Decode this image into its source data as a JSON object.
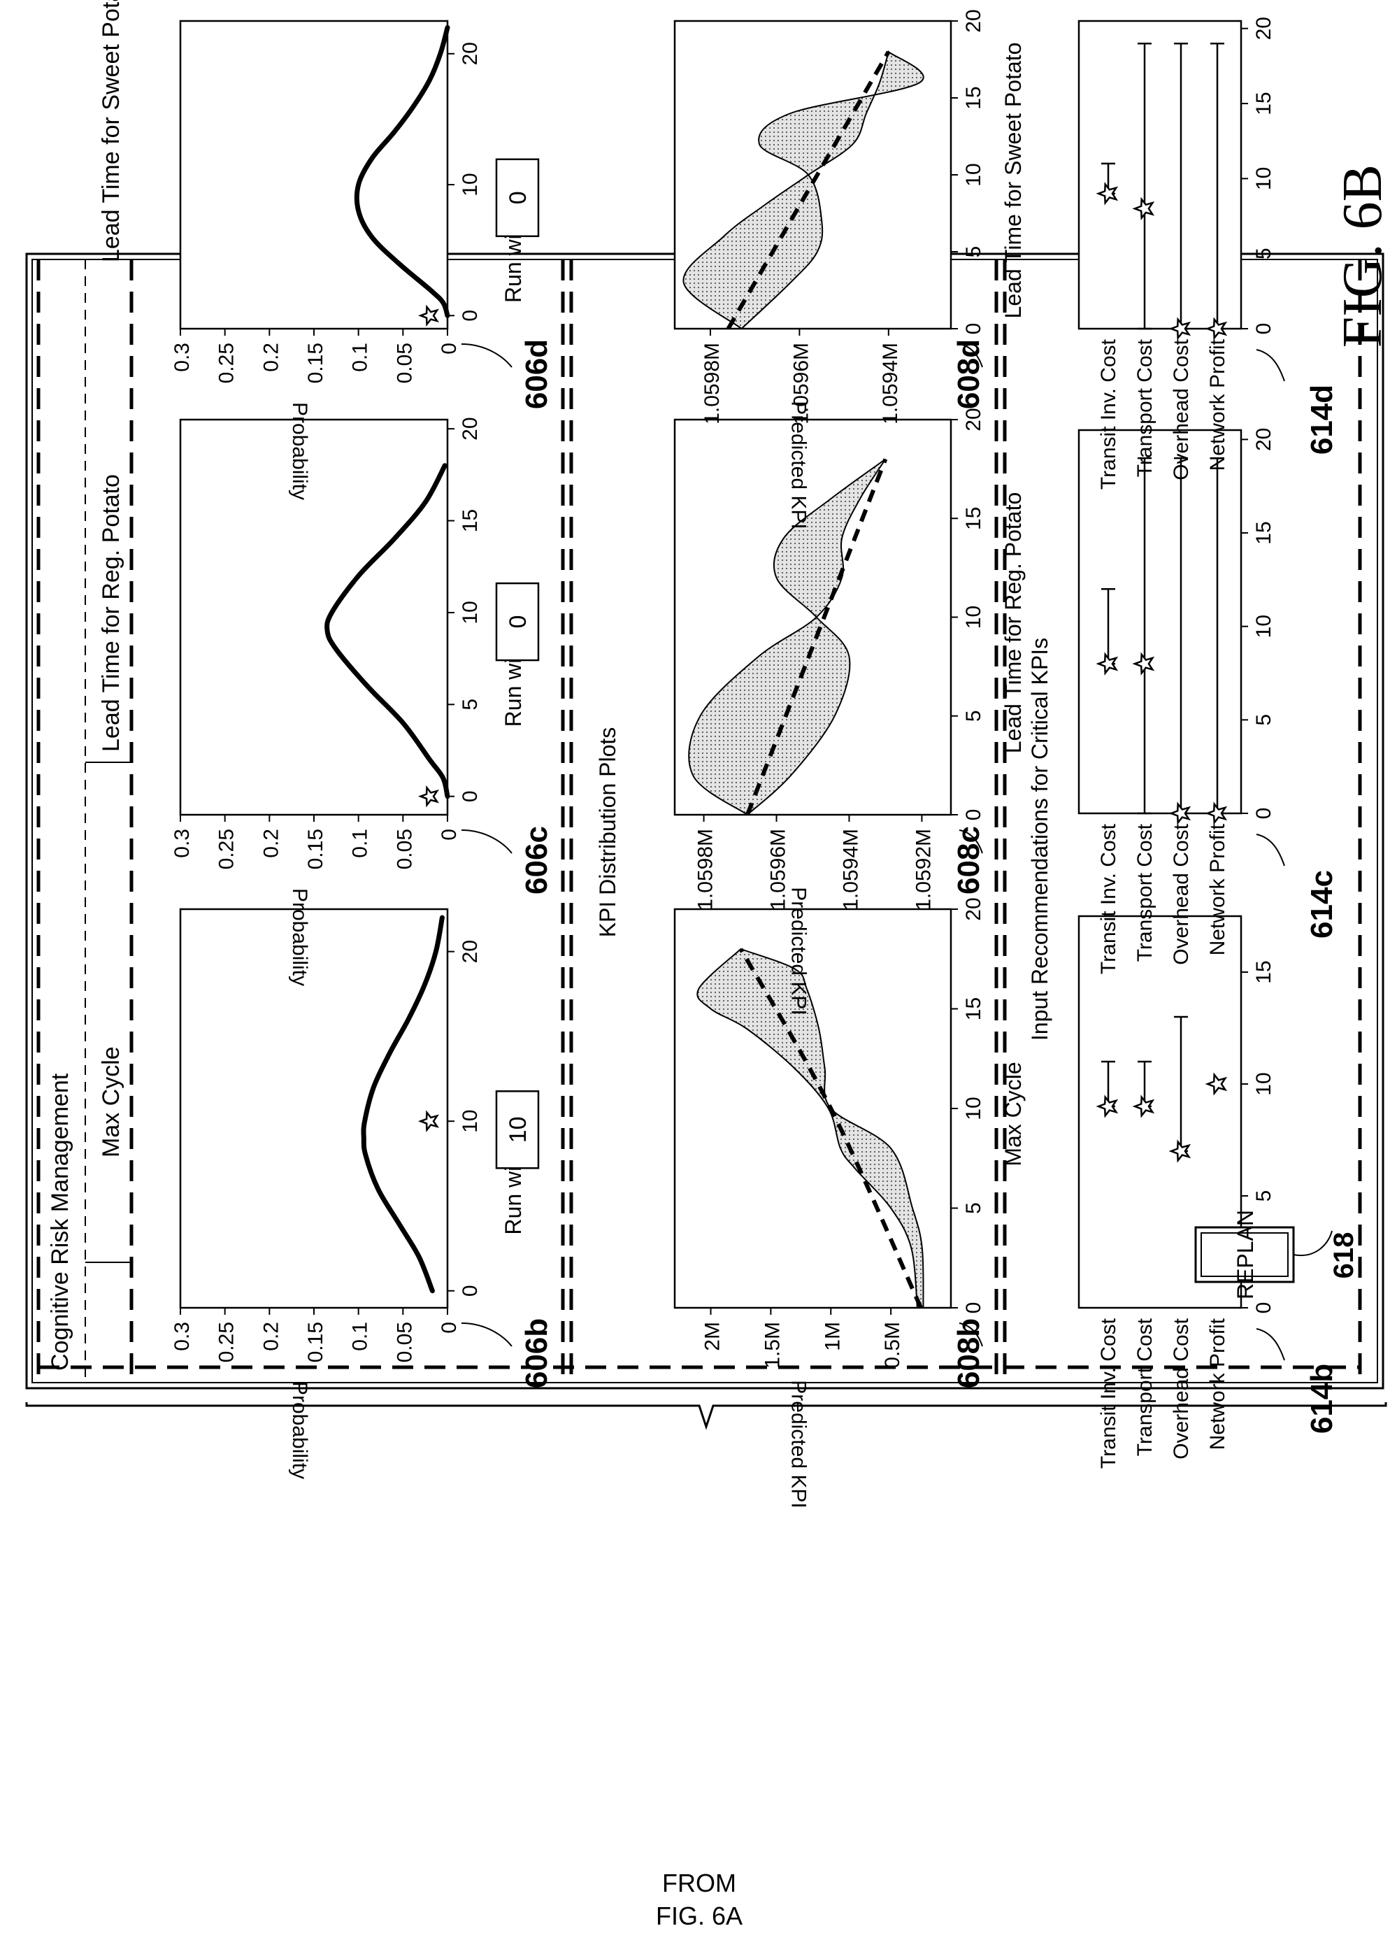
{
  "figure": {
    "fig_label": "FIG. 6B",
    "from_label": [
      "FROM",
      "FIG. 6A"
    ]
  },
  "app": {
    "title": "Cognitive Risk Management"
  },
  "parameters": {
    "columns": [
      {
        "title": "Max Cycle",
        "ref": "606b",
        "run_with_label": "Run with",
        "run_with_value": "10",
        "ylabel": "Probability",
        "yticks": [
          "0.3",
          "0.25",
          "0.2",
          "0.15",
          "0.1",
          "0.05",
          "0"
        ],
        "xticks": [
          "0",
          "10",
          "20"
        ]
      },
      {
        "title": "Lead Time for Reg. Potato",
        "ref": "606c",
        "run_with_label": "Run with",
        "run_with_value": "0",
        "ylabel": "Probability",
        "yticks": [
          "0.3",
          "0.25",
          "0.2",
          "0.15",
          "0.1",
          "0.05",
          "0"
        ],
        "xticks": [
          "0",
          "5",
          "10",
          "15",
          "20"
        ]
      },
      {
        "title": "Lead Time for Sweet Potato",
        "ref": "606d",
        "run_with_label": "Run with",
        "run_with_value": "0",
        "ylabel": "Probability",
        "yticks": [
          "0.3",
          "0.25",
          "0.2",
          "0.15",
          "0.1",
          "0.05",
          "0"
        ],
        "xticks": [
          "0",
          "10",
          "20"
        ]
      }
    ]
  },
  "kpi_section": {
    "title": "KPI Distribution Plots",
    "plots": [
      {
        "ref": "608b",
        "ylabel": "Predicted KPI",
        "xlabel": "Max Cycle",
        "yticks": [
          "2M",
          "1.5M",
          "1M",
          "0.5M"
        ],
        "xticks": [
          "0",
          "5",
          "10",
          "15",
          "20"
        ]
      },
      {
        "ref": "608c",
        "ylabel": "Predicted KPI",
        "xlabel": "Lead Time for Reg. Potato",
        "yticks": [
          "1.0598M",
          "1.0596M",
          "1.0594M",
          "1.0592M"
        ],
        "xticks": [
          "0",
          "5",
          "10",
          "15",
          "20"
        ]
      },
      {
        "ref": "608d",
        "ylabel": "Predicted KPI",
        "xlabel": "Lead Time for Sweet Potato",
        "yticks": [
          "1.0598M",
          "1.0596M",
          "1.0594M"
        ],
        "xticks": [
          "0",
          "5",
          "10",
          "15",
          "20"
        ]
      }
    ]
  },
  "recommendations": {
    "title": "Input Recommendations for Critical KPIs",
    "plots": [
      {
        "ref": "614b",
        "labels": [
          "Transit Inv. Cost",
          "Transport Cost",
          "Overhead Cost",
          "Network Profit"
        ],
        "xticks": [
          "0",
          "5",
          "10",
          "15"
        ]
      },
      {
        "ref": "614c",
        "labels": [
          "Transit Inv. Cost",
          "Transport Cost",
          "Overhead Cost",
          "Network Profit"
        ],
        "xticks": [
          "0",
          "5",
          "10",
          "15",
          "20"
        ]
      },
      {
        "ref": "614d",
        "labels": [
          "Transit Inv. Cost",
          "Transport Cost",
          "Overhead Cost",
          "Network Profit"
        ],
        "xticks": [
          "0",
          "5",
          "10",
          "15",
          "20"
        ]
      }
    ],
    "replan_label": "REPLAN",
    "replan_ref": "618"
  },
  "chart_data": [
    {
      "type": "line",
      "title": "Max Cycle",
      "ylabel": "Probability",
      "xlim": [
        0,
        20
      ],
      "ylim": [
        0,
        0.3
      ],
      "series": [
        {
          "x": [
            0,
            2,
            4,
            6,
            8,
            9,
            10,
            12,
            14,
            16,
            18,
            20,
            22
          ],
          "y": [
            0.017,
            0.032,
            0.055,
            0.078,
            0.092,
            0.094,
            0.093,
            0.083,
            0.065,
            0.044,
            0.026,
            0.013,
            0.006
          ]
        }
      ],
      "marker_x": 10
    },
    {
      "type": "line",
      "title": "Lead Time for Reg. Potato",
      "ylabel": "Probability",
      "xlim": [
        0,
        20
      ],
      "ylim": [
        0,
        0.3
      ],
      "series": [
        {
          "x": [
            0,
            1,
            2,
            4,
            6,
            8,
            9,
            10,
            12,
            14,
            16,
            18
          ],
          "y": [
            0.0,
            0.005,
            0.02,
            0.05,
            0.09,
            0.125,
            0.135,
            0.13,
            0.1,
            0.06,
            0.025,
            0.003
          ]
        }
      ],
      "marker_x": 0
    },
    {
      "type": "line",
      "title": "Lead Time for Sweet Potato",
      "ylabel": "Probability",
      "xlim": [
        0,
        20
      ],
      "ylim": [
        0,
        0.3
      ],
      "series": [
        {
          "x": [
            0,
            1,
            2,
            4,
            6,
            8,
            10,
            12,
            14,
            16,
            18,
            20,
            22
          ],
          "y": [
            0.0,
            0.005,
            0.02,
            0.055,
            0.085,
            0.1,
            0.1,
            0.085,
            0.06,
            0.038,
            0.02,
            0.008,
            0.0
          ]
        }
      ],
      "marker_x": 0
    },
    {
      "type": "area",
      "xlabel": "Max Cycle",
      "ylabel": "Predicted KPI",
      "xlim": [
        0,
        20
      ],
      "ylim": [
        0,
        2300000
      ],
      "trend": {
        "x": [
          0,
          10,
          18
        ],
        "y": [
          250000,
          1000000,
          1750000
        ]
      },
      "band_upper": {
        "x": [
          0,
          3,
          5,
          7,
          8,
          10,
          12,
          14,
          15,
          16,
          18
        ],
        "y": [
          280000,
          330000,
          500000,
          800000,
          920000,
          1020000,
          1300000,
          1700000,
          2000000,
          2100000,
          1750000
        ]
      },
      "band_lower": {
        "x": [
          0,
          3,
          5,
          8,
          10,
          12,
          14,
          16,
          17,
          18
        ],
        "y": [
          230000,
          240000,
          320000,
          500000,
          1000000,
          1050000,
          1100000,
          1200000,
          1300000,
          1750000
        ]
      }
    },
    {
      "type": "area",
      "xlabel": "Lead Time for Reg. Potato",
      "ylabel": "Predicted KPI",
      "xlim": [
        0,
        20
      ],
      "ylim": [
        1059120,
        1059880
      ],
      "trend": {
        "x": [
          0,
          18
        ],
        "y": [
          1059680,
          1059300
        ]
      },
      "band_upper": {
        "x": [
          0,
          2,
          5,
          8,
          10,
          12,
          14,
          16,
          18
        ],
        "y": [
          1059680,
          1059830,
          1059810,
          1059650,
          1059490,
          1059420,
          1059420,
          1059370,
          1059300
        ]
      },
      "band_lower": {
        "x": [
          0,
          2,
          5,
          8,
          10,
          12,
          14,
          16,
          18
        ],
        "y": [
          1059680,
          1059560,
          1059440,
          1059400,
          1059490,
          1059600,
          1059580,
          1059450,
          1059300
        ]
      }
    },
    {
      "type": "area",
      "xlabel": "Lead Time for Sweet Potato",
      "ylabel": "Predicted KPI",
      "xlim": [
        0,
        20
      ],
      "ylim": [
        1059260,
        1059880
      ],
      "trend": {
        "x": [
          0,
          18
        ],
        "y": [
          1059760,
          1059400
        ]
      },
      "band_upper": {
        "x": [
          0,
          3,
          6,
          8,
          10,
          12,
          14,
          16,
          18
        ],
        "y": [
          1059730,
          1059860,
          1059770,
          1059680,
          1059580,
          1059480,
          1059450,
          1059420,
          1059400
        ]
      },
      "band_lower": {
        "x": [
          0,
          3,
          5,
          7,
          10,
          12,
          14,
          16,
          18
        ],
        "y": [
          1059730,
          1059620,
          1059560,
          1059550,
          1059580,
          1059690,
          1059620,
          1059330,
          1059400
        ]
      }
    },
    {
      "type": "scatter",
      "categories": [
        "Transit Inv. Cost",
        "Transport Cost",
        "Overhead Cost",
        "Network Profit"
      ],
      "xlim": [
        0,
        18
      ],
      "points": [
        9,
        9,
        7,
        10
      ],
      "ranges": [
        [
          9,
          11
        ],
        [
          9,
          11
        ],
        [
          7,
          13
        ],
        null
      ]
    },
    {
      "type": "scatter",
      "categories": [
        "Transit Inv. Cost",
        "Transport Cost",
        "Overhead Cost",
        "Network Profit"
      ],
      "xlim": [
        0,
        20
      ],
      "points": [
        8,
        8,
        0,
        0
      ],
      "ranges": [
        [
          8,
          12
        ],
        [
          0,
          19
        ],
        [
          0,
          19
        ],
        [
          0,
          19
        ]
      ]
    },
    {
      "type": "scatter",
      "categories": [
        "Transit Inv. Cost",
        "Transport Cost",
        "Overhead Cost",
        "Network Profit"
      ],
      "xlim": [
        0,
        20
      ],
      "points": [
        9,
        8,
        0,
        0
      ],
      "ranges": [
        [
          9,
          11
        ],
        [
          0,
          19
        ],
        [
          0,
          19
        ],
        [
          0,
          19
        ]
      ]
    }
  ]
}
